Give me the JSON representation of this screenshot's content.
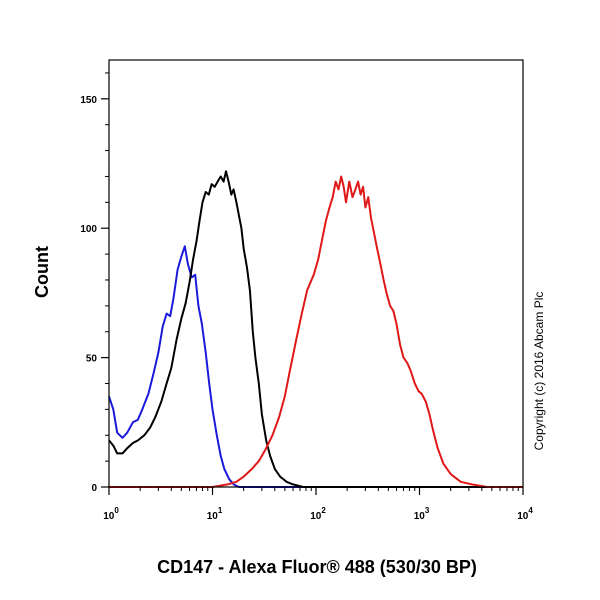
{
  "chart_data": {
    "type": "line",
    "xlabel": "CD147 - Alexa Fluor® 488 (530/30 BP)",
    "ylabel": "Count",
    "xscale": "log",
    "xlim": [
      1,
      10000
    ],
    "ylim": [
      0,
      165
    ],
    "y_ticks": [
      0,
      50,
      100,
      150
    ],
    "y_tick_labels": [
      "0",
      "50",
      "100",
      "150"
    ],
    "x_ticks": [
      1,
      10,
      100,
      1000,
      10000
    ],
    "x_tick_labels": [
      {
        "base": "10",
        "exp": "0"
      },
      {
        "base": "10",
        "exp": "1"
      },
      {
        "base": "10",
        "exp": "2"
      },
      {
        "base": "10",
        "exp": "3"
      },
      {
        "base": "10",
        "exp": "4"
      }
    ],
    "grid": false,
    "legend": "none",
    "annotation": "Copyright (c) 2016 Abcam Plc",
    "series": [
      {
        "color": "#1a1adb",
        "points": [
          [
            1.0,
            35
          ],
          [
            1.1,
            30
          ],
          [
            1.2,
            21
          ],
          [
            1.35,
            19
          ],
          [
            1.5,
            21
          ],
          [
            1.7,
            25
          ],
          [
            1.9,
            26
          ],
          [
            2.1,
            30
          ],
          [
            2.4,
            36
          ],
          [
            2.7,
            44
          ],
          [
            3.0,
            52
          ],
          [
            3.3,
            62
          ],
          [
            3.6,
            67
          ],
          [
            3.9,
            66
          ],
          [
            4.2,
            73
          ],
          [
            4.6,
            84
          ],
          [
            5.0,
            89
          ],
          [
            5.4,
            93
          ],
          [
            5.8,
            86
          ],
          [
            6.3,
            81
          ],
          [
            6.8,
            82
          ],
          [
            7.3,
            70
          ],
          [
            7.9,
            63
          ],
          [
            8.6,
            52
          ],
          [
            9.3,
            40
          ],
          [
            10,
            30
          ],
          [
            11,
            20
          ],
          [
            12,
            12
          ],
          [
            13,
            7
          ],
          [
            14.5,
            3
          ],
          [
            16,
            1
          ],
          [
            18,
            0
          ],
          [
            25,
            0
          ],
          [
            10000,
            0
          ]
        ]
      },
      {
        "color": "#000000",
        "points": [
          [
            1.0,
            18
          ],
          [
            1.1,
            16
          ],
          [
            1.2,
            13
          ],
          [
            1.35,
            13
          ],
          [
            1.5,
            15
          ],
          [
            1.7,
            17
          ],
          [
            1.9,
            18
          ],
          [
            2.2,
            20
          ],
          [
            2.5,
            23
          ],
          [
            2.8,
            27
          ],
          [
            3.2,
            33
          ],
          [
            3.6,
            40
          ],
          [
            4.0,
            46
          ],
          [
            4.5,
            57
          ],
          [
            5.0,
            65
          ],
          [
            5.5,
            71
          ],
          [
            6.0,
            79
          ],
          [
            6.5,
            88
          ],
          [
            7.0,
            95
          ],
          [
            7.5,
            103
          ],
          [
            8.0,
            110
          ],
          [
            8.6,
            114
          ],
          [
            9.2,
            113
          ],
          [
            9.8,
            117
          ],
          [
            10.5,
            116
          ],
          [
            11.2,
            118
          ],
          [
            12,
            120
          ],
          [
            12.8,
            118
          ],
          [
            13.5,
            122
          ],
          [
            14.3,
            118
          ],
          [
            15.2,
            113
          ],
          [
            16,
            115
          ],
          [
            17,
            110
          ],
          [
            18,
            105
          ],
          [
            19,
            100
          ],
          [
            20,
            92
          ],
          [
            21.5,
            85
          ],
          [
            23,
            76
          ],
          [
            24.5,
            60
          ],
          [
            26,
            50
          ],
          [
            28,
            40
          ],
          [
            30,
            28
          ],
          [
            33,
            18
          ],
          [
            36,
            12
          ],
          [
            40,
            7
          ],
          [
            45,
            4
          ],
          [
            52,
            2
          ],
          [
            60,
            1
          ],
          [
            75,
            0
          ],
          [
            10000,
            0
          ]
        ]
      },
      {
        "color": "#e01818",
        "points": [
          [
            1.0,
            0
          ],
          [
            10,
            0
          ],
          [
            14,
            1
          ],
          [
            17,
            2
          ],
          [
            20,
            4
          ],
          [
            24,
            7
          ],
          [
            28,
            10
          ],
          [
            33,
            15
          ],
          [
            38,
            20
          ],
          [
            44,
            27
          ],
          [
            50,
            35
          ],
          [
            56,
            45
          ],
          [
            63,
            55
          ],
          [
            72,
            66
          ],
          [
            82,
            76
          ],
          [
            95,
            82
          ],
          [
            105,
            88
          ],
          [
            115,
            96
          ],
          [
            125,
            103
          ],
          [
            135,
            108
          ],
          [
            145,
            112
          ],
          [
            155,
            118
          ],
          [
            165,
            115
          ],
          [
            175,
            120
          ],
          [
            185,
            116
          ],
          [
            195,
            110
          ],
          [
            210,
            118
          ],
          [
            225,
            112
          ],
          [
            240,
            115
          ],
          [
            255,
            118
          ],
          [
            270,
            113
          ],
          [
            285,
            116
          ],
          [
            300,
            108
          ],
          [
            320,
            112
          ],
          [
            340,
            104
          ],
          [
            360,
            99
          ],
          [
            390,
            92
          ],
          [
            420,
            86
          ],
          [
            450,
            80
          ],
          [
            480,
            75
          ],
          [
            520,
            70
          ],
          [
            560,
            68
          ],
          [
            600,
            63
          ],
          [
            650,
            55
          ],
          [
            700,
            50
          ],
          [
            760,
            48
          ],
          [
            820,
            45
          ],
          [
            900,
            40
          ],
          [
            980,
            37
          ],
          [
            1050,
            36
          ],
          [
            1150,
            33
          ],
          [
            1250,
            28
          ],
          [
            1350,
            22
          ],
          [
            1500,
            15
          ],
          [
            1700,
            9
          ],
          [
            2000,
            5
          ],
          [
            2500,
            2
          ],
          [
            3200,
            1
          ],
          [
            4500,
            0
          ],
          [
            10000,
            0
          ]
        ]
      }
    ]
  }
}
